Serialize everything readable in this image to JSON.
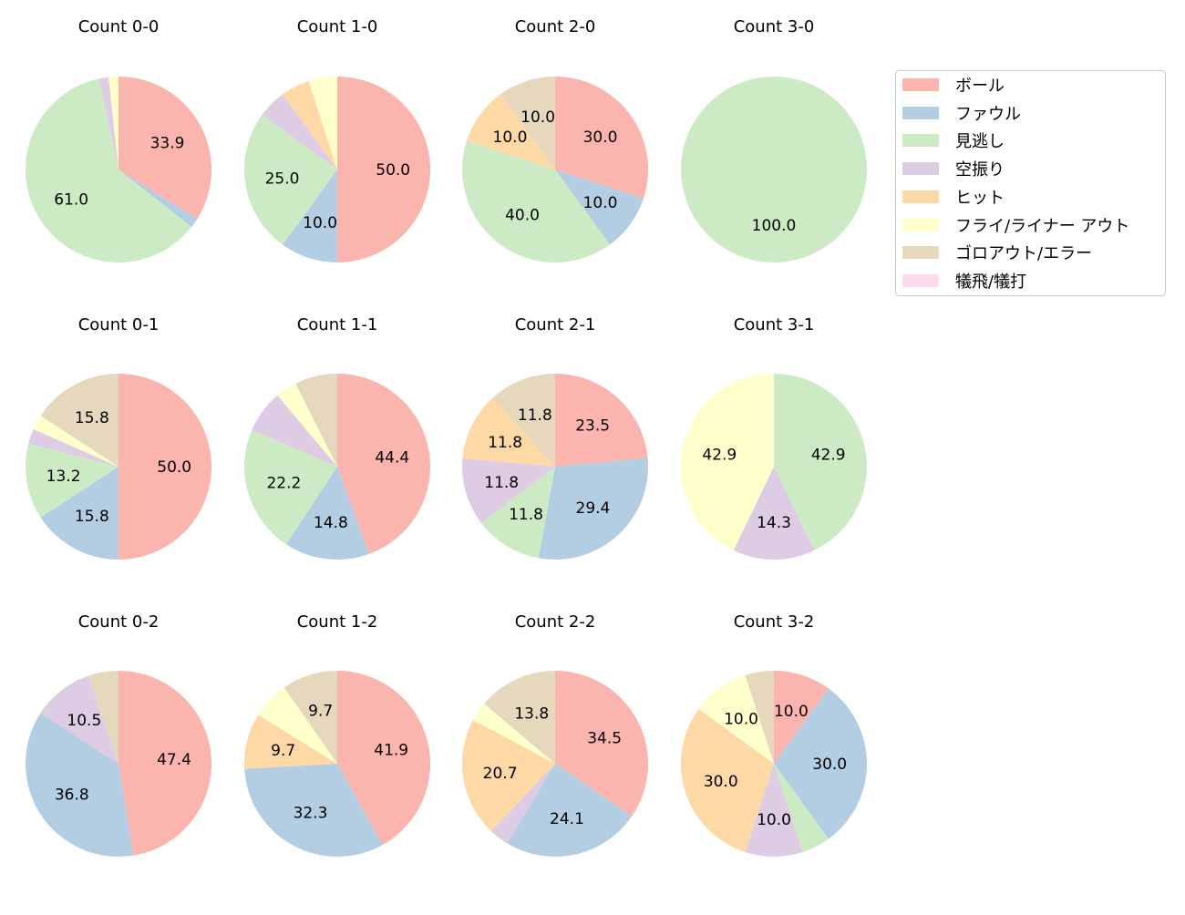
{
  "chart_data": {
    "type": "pie",
    "legend": {
      "placement": "right",
      "entries": [
        "ボール",
        "ファウル",
        "見逃し",
        "空振り",
        "ヒット",
        "フライ/ライナー アウト",
        "ゴロアウト/エラー",
        "犠飛/犠打"
      ]
    },
    "colors": [
      "#fbb4ae",
      "#b3cde3",
      "#ccebc5",
      "#decbe4",
      "#fed9a6",
      "#ffffcc",
      "#e5d8bd",
      "#fddaec"
    ],
    "start_angle": 90,
    "direction": "clockwise",
    "pies": [
      {
        "title": "Count 0-0",
        "values": [
          33.9,
          1.7,
          61.0,
          1.7,
          0,
          1.7,
          0,
          0
        ]
      },
      {
        "title": "Count 1-0",
        "values": [
          50.0,
          10.0,
          25.0,
          5.0,
          5.0,
          5.0,
          0,
          0
        ]
      },
      {
        "title": "Count 2-0",
        "values": [
          30.0,
          10.0,
          40.0,
          0,
          10.0,
          0,
          10.0,
          0
        ]
      },
      {
        "title": "Count 3-0",
        "values": [
          0,
          0,
          100.0,
          0,
          0,
          0,
          0,
          0
        ]
      },
      {
        "title": "Count 0-1",
        "values": [
          50.0,
          15.8,
          13.2,
          2.6,
          0,
          2.6,
          15.8,
          0
        ]
      },
      {
        "title": "Count 1-1",
        "values": [
          44.4,
          14.8,
          22.2,
          7.4,
          0,
          3.7,
          7.4,
          0
        ]
      },
      {
        "title": "Count 2-1",
        "values": [
          23.5,
          29.4,
          11.8,
          11.8,
          11.8,
          0,
          11.8,
          0
        ]
      },
      {
        "title": "Count 3-1",
        "values": [
          0,
          0,
          42.9,
          14.3,
          0,
          42.9,
          0,
          0
        ]
      },
      {
        "title": "Count 0-2",
        "values": [
          47.4,
          36.8,
          0,
          10.5,
          0,
          0,
          5.3,
          0
        ]
      },
      {
        "title": "Count 1-2",
        "values": [
          41.9,
          32.3,
          0,
          0,
          9.7,
          6.5,
          9.7,
          0
        ]
      },
      {
        "title": "Count 2-2",
        "values": [
          34.5,
          24.1,
          0,
          3.4,
          20.7,
          3.4,
          13.8,
          0
        ]
      },
      {
        "title": "Count 3-2",
        "values": [
          10.0,
          30.0,
          5.0,
          10.0,
          30.0,
          10.0,
          5.0,
          0
        ]
      }
    ],
    "label_threshold_percent": 9
  }
}
